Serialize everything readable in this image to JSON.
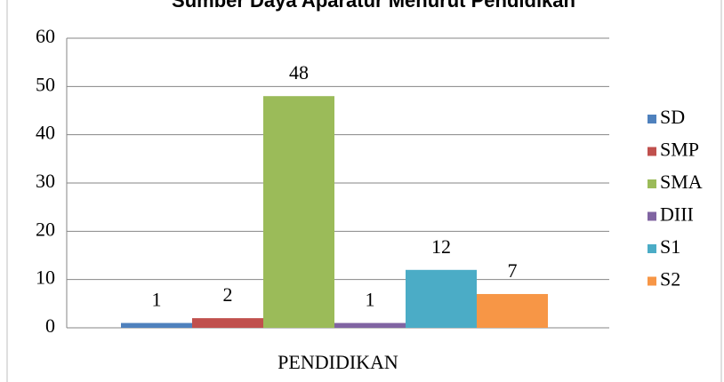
{
  "chart_data": {
    "type": "bar",
    "title": "Sumber Daya Aparatur Menurut Pendidikan",
    "categories": [
      "PENDIDIKAN"
    ],
    "series": [
      {
        "name": "SD",
        "color": "#4f81bd",
        "values": [
          1
        ]
      },
      {
        "name": "SMP",
        "color": "#c0504d",
        "values": [
          2
        ]
      },
      {
        "name": "SMA",
        "color": "#9bbb59",
        "values": [
          48
        ]
      },
      {
        "name": "DIII",
        "color": "#8064a2",
        "values": [
          1
        ]
      },
      {
        "name": "S1",
        "color": "#4bacc6",
        "values": [
          12
        ]
      },
      {
        "name": "S2",
        "color": "#f79646",
        "values": [
          7
        ]
      }
    ],
    "ylim": [
      0,
      60
    ],
    "yticks": [
      0,
      10,
      20,
      30,
      40,
      50,
      60
    ],
    "grid": true,
    "legend": "right"
  }
}
